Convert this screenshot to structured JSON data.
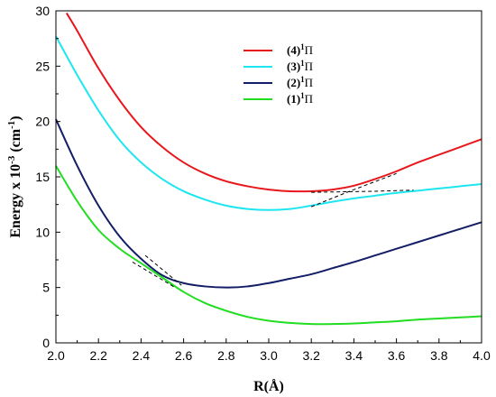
{
  "chart_data": {
    "type": "line",
    "xlabel": "R(Å)",
    "ylabel": "Energy x 10",
    "ylabel_exp": "-3",
    "ylabel_unit": " (cm",
    "ylabel_unit_exp": "-1",
    "ylabel_close": ")",
    "xlim": [
      2.0,
      4.0
    ],
    "ylim": [
      0,
      30
    ],
    "xticks": [
      "2.0",
      "2.2",
      "2.4",
      "2.6",
      "2.8",
      "3.0",
      "3.2",
      "3.4",
      "3.6",
      "3.8",
      "4.0"
    ],
    "yticks": [
      "0",
      "5",
      "10",
      "15",
      "20",
      "25",
      "30"
    ],
    "legend_position": "top-center",
    "series": [
      {
        "name": "(4)",
        "sup": "1",
        "sym": "Π",
        "color": "#e8171b",
        "x": [
          2.05,
          2.1,
          2.2,
          2.3,
          2.4,
          2.5,
          2.6,
          2.7,
          2.8,
          2.9,
          3.0,
          3.1,
          3.2,
          3.3,
          3.4,
          3.5,
          3.6,
          3.7,
          3.8,
          3.9,
          4.0
        ],
        "y": [
          29.8,
          28.2,
          24.8,
          21.9,
          19.5,
          17.7,
          16.3,
          15.3,
          14.6,
          14.15,
          13.85,
          13.7,
          13.7,
          13.85,
          14.2,
          14.8,
          15.5,
          16.3,
          17.0,
          17.7,
          18.4
        ]
      },
      {
        "name": "(3)",
        "sup": "1",
        "sym": "Π",
        "color": "#1ee6f0",
        "x": [
          2.0,
          2.1,
          2.2,
          2.3,
          2.4,
          2.5,
          2.6,
          2.7,
          2.8,
          2.9,
          3.0,
          3.1,
          3.2,
          3.3,
          3.4,
          3.5,
          3.6,
          3.7,
          3.8,
          3.9,
          4.0
        ],
        "y": [
          27.7,
          24.2,
          21.0,
          18.3,
          16.3,
          14.8,
          13.7,
          12.95,
          12.4,
          12.1,
          12.0,
          12.1,
          12.4,
          12.75,
          13.05,
          13.3,
          13.55,
          13.75,
          13.95,
          14.15,
          14.35
        ]
      },
      {
        "name": "(2)",
        "sup": "1",
        "sym": "Π",
        "color": "#141e66",
        "x": [
          2.0,
          2.1,
          2.2,
          2.3,
          2.4,
          2.5,
          2.6,
          2.7,
          2.8,
          2.9,
          3.0,
          3.1,
          3.2,
          3.3,
          3.4,
          3.5,
          3.6,
          3.7,
          3.8,
          3.9,
          4.0
        ],
        "y": [
          20.2,
          16.0,
          12.4,
          9.6,
          7.6,
          6.1,
          5.4,
          5.1,
          5.0,
          5.1,
          5.4,
          5.8,
          6.2,
          6.75,
          7.3,
          7.9,
          8.5,
          9.1,
          9.7,
          10.3,
          10.9
        ]
      },
      {
        "name": "(1)",
        "sup": "1",
        "sym": "Π",
        "color": "#22dd22",
        "x": [
          2.0,
          2.1,
          2.2,
          2.3,
          2.4,
          2.5,
          2.6,
          2.7,
          2.8,
          2.9,
          3.0,
          3.1,
          3.2,
          3.3,
          3.4,
          3.5,
          3.6,
          3.7,
          3.8,
          3.9,
          4.0
        ],
        "y": [
          16.0,
          12.8,
          10.2,
          8.5,
          7.2,
          5.9,
          4.6,
          3.6,
          2.9,
          2.35,
          2.0,
          1.8,
          1.7,
          1.7,
          1.75,
          1.85,
          1.95,
          2.1,
          2.2,
          2.3,
          2.4
        ]
      }
    ],
    "diabatic_lines": [
      {
        "x": [
          2.36,
          2.56
        ],
        "y": [
          7.3,
          5.0
        ]
      },
      {
        "x": [
          2.42,
          2.59
        ],
        "y": [
          7.9,
          5.2
        ]
      },
      {
        "x": [
          3.2,
          3.38,
          3.6
        ],
        "y": [
          12.3,
          13.7,
          15.3
        ]
      },
      {
        "x": [
          3.2,
          3.5,
          3.68
        ],
        "y": [
          13.6,
          13.7,
          13.8
        ]
      }
    ]
  }
}
